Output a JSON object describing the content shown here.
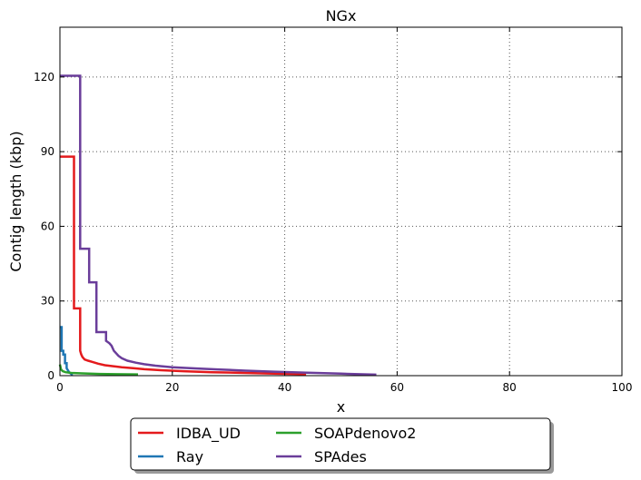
{
  "chart_data": {
    "type": "line",
    "title": "NGx",
    "xlabel": "x",
    "ylabel": "Contig length  (kbp)",
    "xlim": [
      0,
      100
    ],
    "ylim": [
      0,
      140
    ],
    "xticks": [
      0,
      20,
      40,
      60,
      80,
      100
    ],
    "yticks": [
      0,
      30,
      60,
      90,
      120
    ],
    "grid": true,
    "legend_position": "bottom-center",
    "series": [
      {
        "name": "IDBA_UD",
        "color": "#e41a1c",
        "x": [
          0,
          2.5,
          2.5,
          3.6,
          3.6,
          3.8,
          4.0,
          4.4,
          5.0,
          5.8,
          6.8,
          8.0,
          9.5,
          11,
          13,
          15,
          18,
          22,
          27,
          33,
          38,
          43.8
        ],
        "y": [
          88,
          88,
          27,
          27,
          10,
          8.5,
          7.5,
          6.5,
          6.0,
          5.5,
          4.8,
          4.2,
          3.8,
          3.4,
          3.0,
          2.6,
          2.2,
          1.8,
          1.4,
          1.1,
          0.8,
          0.6
        ]
      },
      {
        "name": "Ray",
        "color": "#1f77b4",
        "x": [
          0,
          0.3,
          0.3,
          0.6,
          0.6,
          0.9,
          0.9,
          1.2,
          1.2,
          1.6,
          2.1,
          2.1
        ],
        "y": [
          19.5,
          19.5,
          10,
          10,
          8.5,
          8.5,
          5,
          5,
          3,
          1.5,
          0.5,
          0
        ]
      },
      {
        "name": "SOAPdenovo2",
        "color": "#2ca02c",
        "x": [
          0,
          0.2,
          0.5,
          1.0,
          2.0,
          4.0,
          7.0,
          10.0,
          13.9
        ],
        "y": [
          4.5,
          2.5,
          1.8,
          1.4,
          1.1,
          0.9,
          0.7,
          0.6,
          0.5
        ]
      },
      {
        "name": "SPAdes",
        "color": "#6a3d9a",
        "x": [
          0,
          3.6,
          3.6,
          5.2,
          5.2,
          6.5,
          6.5,
          8.2,
          8.2,
          8.8,
          9.2,
          9.6,
          10.0,
          10.4,
          11,
          12,
          13.5,
          15,
          17,
          20,
          24,
          28,
          33,
          38,
          44,
          50,
          56.3
        ],
        "y": [
          120.5,
          120.5,
          51,
          51,
          37.5,
          37.5,
          17.5,
          17.5,
          14,
          13,
          12,
          10,
          9,
          8,
          7,
          6,
          5.2,
          4.6,
          4.0,
          3.4,
          2.9,
          2.5,
          2.0,
          1.6,
          1.2,
          0.8,
          0.4
        ]
      }
    ]
  }
}
